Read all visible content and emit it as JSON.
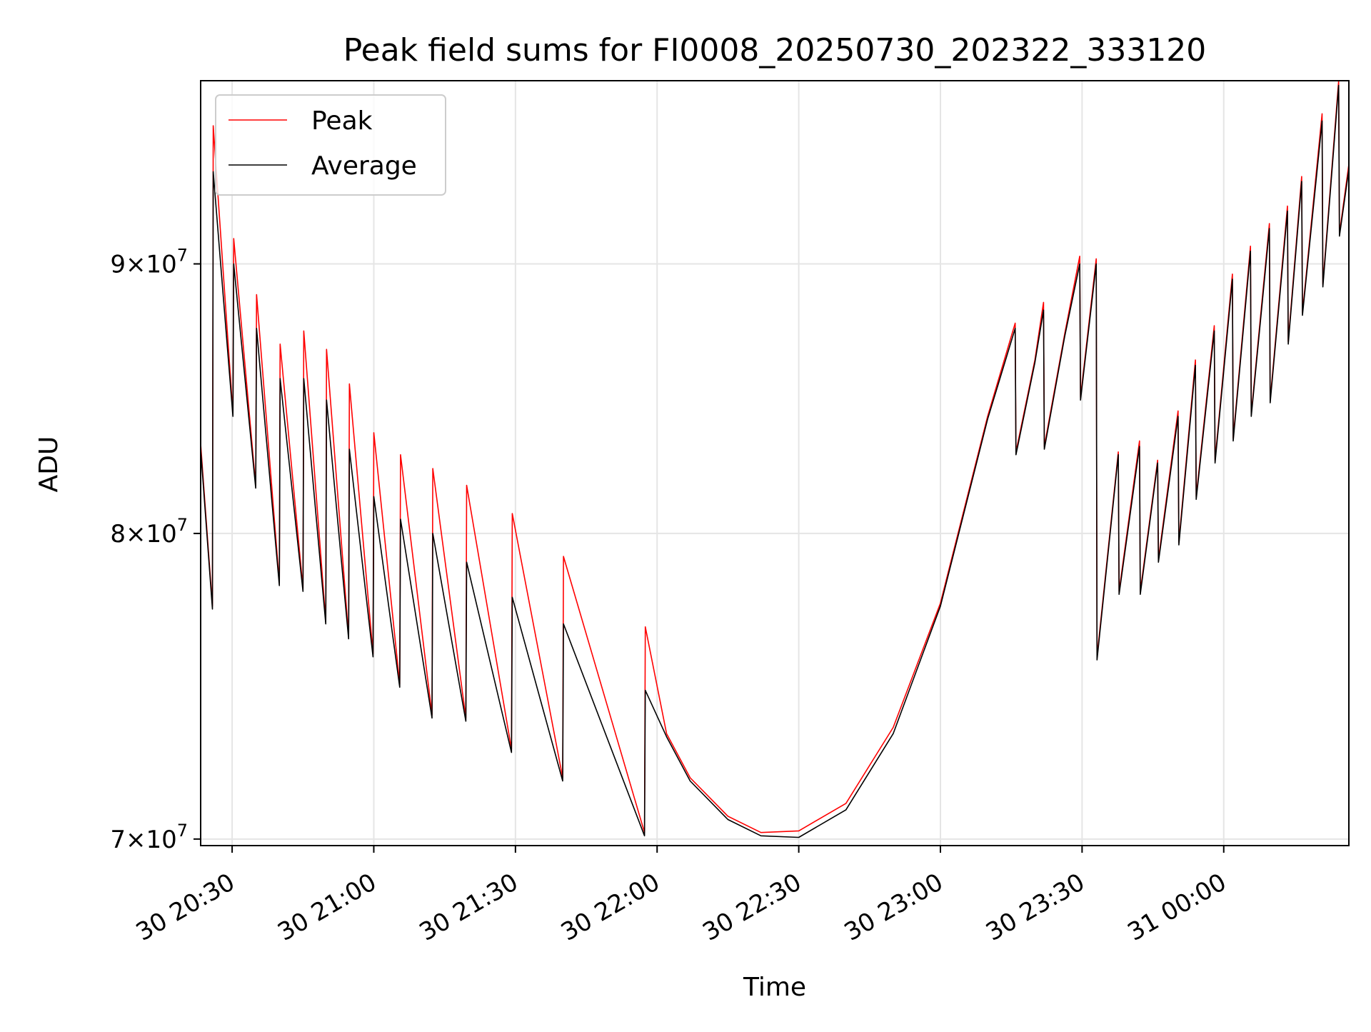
{
  "chart_data": {
    "type": "line",
    "title": "Peak field sums for FI0008_20250730_202322_333120",
    "xlabel": "Time",
    "ylabel": "ADU",
    "y_scale": "log",
    "ylim": [
      69800000,
      97500000
    ],
    "xlim": [
      "2025-07-30 20:23:20",
      "2025-07-31 00:26:30"
    ],
    "grid": true,
    "legend_position": "top-left",
    "x_ticks": [
      {
        "value": "2025-07-30 20:30",
        "label": "30 20:30"
      },
      {
        "value": "2025-07-30 21:00",
        "label": "30 21:00"
      },
      {
        "value": "2025-07-30 21:30",
        "label": "30 21:30"
      },
      {
        "value": "2025-07-30 22:00",
        "label": "30 22:00"
      },
      {
        "value": "2025-07-30 22:30",
        "label": "30 22:30"
      },
      {
        "value": "2025-07-30 23:00",
        "label": "30 23:00"
      },
      {
        "value": "2025-07-30 23:30",
        "label": "30 23:30"
      },
      {
        "value": "2025-07-31 00:00",
        "label": "31 00:00"
      }
    ],
    "y_ticks": [
      {
        "value": 70000000,
        "mantissa": "7",
        "exponent": "7"
      },
      {
        "value": 80000000,
        "mantissa": "8",
        "exponent": "7"
      },
      {
        "value": 90000000,
        "mantissa": "9",
        "exponent": "7"
      }
    ],
    "series": [
      {
        "name": "Peak",
        "color": "#ff0000",
        "points": [
          [
            "2025-07-30 20:23:20",
            83200000
          ],
          [
            "2025-07-30 20:25:50",
            77500000
          ],
          [
            "2025-07-30 20:26:00",
            95600000
          ],
          [
            "2025-07-30 20:30:10",
            84300000
          ],
          [
            "2025-07-30 20:30:20",
            91000000
          ],
          [
            "2025-07-30 20:35:00",
            81700000
          ],
          [
            "2025-07-30 20:35:10",
            88800000
          ],
          [
            "2025-07-30 20:40:00",
            78300000
          ],
          [
            "2025-07-30 20:40:10",
            86900000
          ],
          [
            "2025-07-30 20:45:00",
            78100000
          ],
          [
            "2025-07-30 20:45:10",
            87400000
          ],
          [
            "2025-07-30 20:49:50",
            77000000
          ],
          [
            "2025-07-30 20:50:00",
            86700000
          ],
          [
            "2025-07-30 20:54:40",
            76500000
          ],
          [
            "2025-07-30 20:54:50",
            85400000
          ],
          [
            "2025-07-30 20:59:50",
            75900000
          ],
          [
            "2025-07-30 21:00:00",
            83600000
          ],
          [
            "2025-07-30 21:05:30",
            74900000
          ],
          [
            "2025-07-30 21:05:40",
            82800000
          ],
          [
            "2025-07-30 21:12:20",
            73900000
          ],
          [
            "2025-07-30 21:12:30",
            82300000
          ],
          [
            "2025-07-30 21:19:30",
            73800000
          ],
          [
            "2025-07-30 21:19:40",
            81700000
          ],
          [
            "2025-07-30 21:29:10",
            72800000
          ],
          [
            "2025-07-30 21:29:20",
            80700000
          ],
          [
            "2025-07-30 21:40:00",
            71900000
          ],
          [
            "2025-07-30 21:40:10",
            79200000
          ],
          [
            "2025-07-30 21:57:20",
            70200000
          ],
          [
            "2025-07-30 21:57:30",
            76800000
          ],
          [
            "2025-07-30 22:02:00",
            73300000
          ],
          [
            "2025-07-30 22:07:00",
            71900000
          ],
          [
            "2025-07-30 22:15:00",
            70700000
          ],
          [
            "2025-07-30 22:22:00",
            70200000
          ],
          [
            "2025-07-30 22:30:00",
            70250000
          ],
          [
            "2025-07-30 22:40:00",
            71100000
          ],
          [
            "2025-07-30 22:50:00",
            73500000
          ],
          [
            "2025-07-30 23:00:00",
            77600000
          ],
          [
            "2025-07-30 23:10:00",
            84200000
          ],
          [
            "2025-07-30 23:15:50",
            87700000
          ],
          [
            "2025-07-30 23:16:00",
            82900000
          ],
          [
            "2025-07-30 23:20:00",
            86300000
          ],
          [
            "2025-07-30 23:21:50",
            88500000
          ],
          [
            "2025-07-30 23:22:00",
            83100000
          ],
          [
            "2025-07-30 23:26:20",
            87300000
          ],
          [
            "2025-07-30 23:29:30",
            90300000
          ],
          [
            "2025-07-30 23:29:40",
            84900000
          ],
          [
            "2025-07-30 23:33:00",
            90200000
          ],
          [
            "2025-07-30 23:33:10",
            75800000
          ],
          [
            "2025-07-30 23:37:40",
            82900000
          ],
          [
            "2025-07-30 23:37:50",
            78000000
          ],
          [
            "2025-07-30 23:42:10",
            83300000
          ],
          [
            "2025-07-30 23:42:20",
            78000000
          ],
          [
            "2025-07-30 23:46:00",
            82600000
          ],
          [
            "2025-07-30 23:46:10",
            79100000
          ],
          [
            "2025-07-30 23:50:20",
            84400000
          ],
          [
            "2025-07-30 23:50:30",
            79700000
          ],
          [
            "2025-07-30 23:54:00",
            86300000
          ],
          [
            "2025-07-30 23:54:10",
            81300000
          ],
          [
            "2025-07-30 23:58:00",
            87600000
          ],
          [
            "2025-07-30 23:58:10",
            82600000
          ],
          [
            "2025-07-31 00:01:50",
            89600000
          ],
          [
            "2025-07-31 00:02:00",
            83400000
          ],
          [
            "2025-07-31 00:05:40",
            90700000
          ],
          [
            "2025-07-31 00:05:50",
            84300000
          ],
          [
            "2025-07-31 00:09:40",
            91600000
          ],
          [
            "2025-07-31 00:09:50",
            84800000
          ],
          [
            "2025-07-31 00:13:30",
            92300000
          ],
          [
            "2025-07-31 00:13:40",
            87000000
          ],
          [
            "2025-07-31 00:16:30",
            93500000
          ],
          [
            "2025-07-31 00:16:40",
            88100000
          ],
          [
            "2025-07-31 00:20:50",
            96100000
          ],
          [
            "2025-07-31 00:21:00",
            89200000
          ],
          [
            "2025-07-31 00:24:20",
            97500000
          ],
          [
            "2025-07-31 00:24:30",
            91200000
          ],
          [
            "2025-07-31 00:26:30",
            94000000
          ]
        ]
      },
      {
        "name": "Average",
        "color": "#000000",
        "points": [
          [
            "2025-07-30 20:23:20",
            83000000
          ],
          [
            "2025-07-30 20:25:50",
            77400000
          ],
          [
            "2025-07-30 20:26:00",
            93700000
          ],
          [
            "2025-07-30 20:30:10",
            84200000
          ],
          [
            "2025-07-30 20:30:20",
            90000000
          ],
          [
            "2025-07-30 20:35:00",
            81600000
          ],
          [
            "2025-07-30 20:35:10",
            87500000
          ],
          [
            "2025-07-30 20:40:00",
            78200000
          ],
          [
            "2025-07-30 20:40:10",
            85600000
          ],
          [
            "2025-07-30 20:45:00",
            78000000
          ],
          [
            "2025-07-30 20:45:10",
            85600000
          ],
          [
            "2025-07-30 20:49:50",
            76900000
          ],
          [
            "2025-07-30 20:50:00",
            84800000
          ],
          [
            "2025-07-30 20:54:40",
            76400000
          ],
          [
            "2025-07-30 20:54:50",
            83000000
          ],
          [
            "2025-07-30 20:59:50",
            75800000
          ],
          [
            "2025-07-30 21:00:00",
            81300000
          ],
          [
            "2025-07-30 21:05:30",
            74800000
          ],
          [
            "2025-07-30 21:05:40",
            80500000
          ],
          [
            "2025-07-30 21:12:20",
            73800000
          ],
          [
            "2025-07-30 21:12:30",
            80000000
          ],
          [
            "2025-07-30 21:19:30",
            73700000
          ],
          [
            "2025-07-30 21:19:40",
            79000000
          ],
          [
            "2025-07-30 21:29:10",
            72700000
          ],
          [
            "2025-07-30 21:29:20",
            77800000
          ],
          [
            "2025-07-30 21:40:00",
            71800000
          ],
          [
            "2025-07-30 21:40:10",
            76900000
          ],
          [
            "2025-07-30 21:57:20",
            70100000
          ],
          [
            "2025-07-30 21:57:30",
            74700000
          ],
          [
            "2025-07-30 22:02:00",
            73200000
          ],
          [
            "2025-07-30 22:07:00",
            71800000
          ],
          [
            "2025-07-30 22:15:00",
            70600000
          ],
          [
            "2025-07-30 22:22:00",
            70100000
          ],
          [
            "2025-07-30 22:30:00",
            70050000
          ],
          [
            "2025-07-30 22:40:00",
            70900000
          ],
          [
            "2025-07-30 22:50:00",
            73300000
          ],
          [
            "2025-07-30 23:00:00",
            77500000
          ],
          [
            "2025-07-30 23:10:00",
            84100000
          ],
          [
            "2025-07-30 23:15:50",
            87500000
          ],
          [
            "2025-07-30 23:16:00",
            82800000
          ],
          [
            "2025-07-30 23:20:00",
            86200000
          ],
          [
            "2025-07-30 23:21:50",
            88200000
          ],
          [
            "2025-07-30 23:22:00",
            83000000
          ],
          [
            "2025-07-30 23:26:20",
            87200000
          ],
          [
            "2025-07-30 23:29:30",
            90000000
          ],
          [
            "2025-07-30 23:29:40",
            84800000
          ],
          [
            "2025-07-30 23:33:00",
            90000000
          ],
          [
            "2025-07-30 23:33:10",
            75700000
          ],
          [
            "2025-07-30 23:37:40",
            82800000
          ],
          [
            "2025-07-30 23:37:50",
            77900000
          ],
          [
            "2025-07-30 23:42:10",
            83100000
          ],
          [
            "2025-07-30 23:42:20",
            77900000
          ],
          [
            "2025-07-30 23:46:00",
            82500000
          ],
          [
            "2025-07-30 23:46:10",
            79000000
          ],
          [
            "2025-07-30 23:50:20",
            84200000
          ],
          [
            "2025-07-30 23:50:30",
            79600000
          ],
          [
            "2025-07-30 23:54:00",
            86100000
          ],
          [
            "2025-07-30 23:54:10",
            81200000
          ],
          [
            "2025-07-30 23:58:00",
            87400000
          ],
          [
            "2025-07-30 23:58:10",
            82500000
          ],
          [
            "2025-07-31 00:01:50",
            89400000
          ],
          [
            "2025-07-31 00:02:00",
            83300000
          ],
          [
            "2025-07-31 00:05:40",
            90500000
          ],
          [
            "2025-07-31 00:05:50",
            84200000
          ],
          [
            "2025-07-31 00:09:40",
            91400000
          ],
          [
            "2025-07-31 00:09:50",
            84700000
          ],
          [
            "2025-07-31 00:13:30",
            92100000
          ],
          [
            "2025-07-31 00:13:40",
            86900000
          ],
          [
            "2025-07-31 00:16:30",
            93300000
          ],
          [
            "2025-07-31 00:16:40",
            88000000
          ],
          [
            "2025-07-31 00:20:50",
            95800000
          ],
          [
            "2025-07-31 00:21:00",
            89100000
          ],
          [
            "2025-07-31 00:24:20",
            97300000
          ],
          [
            "2025-07-31 00:24:30",
            91100000
          ],
          [
            "2025-07-31 00:26:30",
            93800000
          ]
        ]
      }
    ]
  }
}
